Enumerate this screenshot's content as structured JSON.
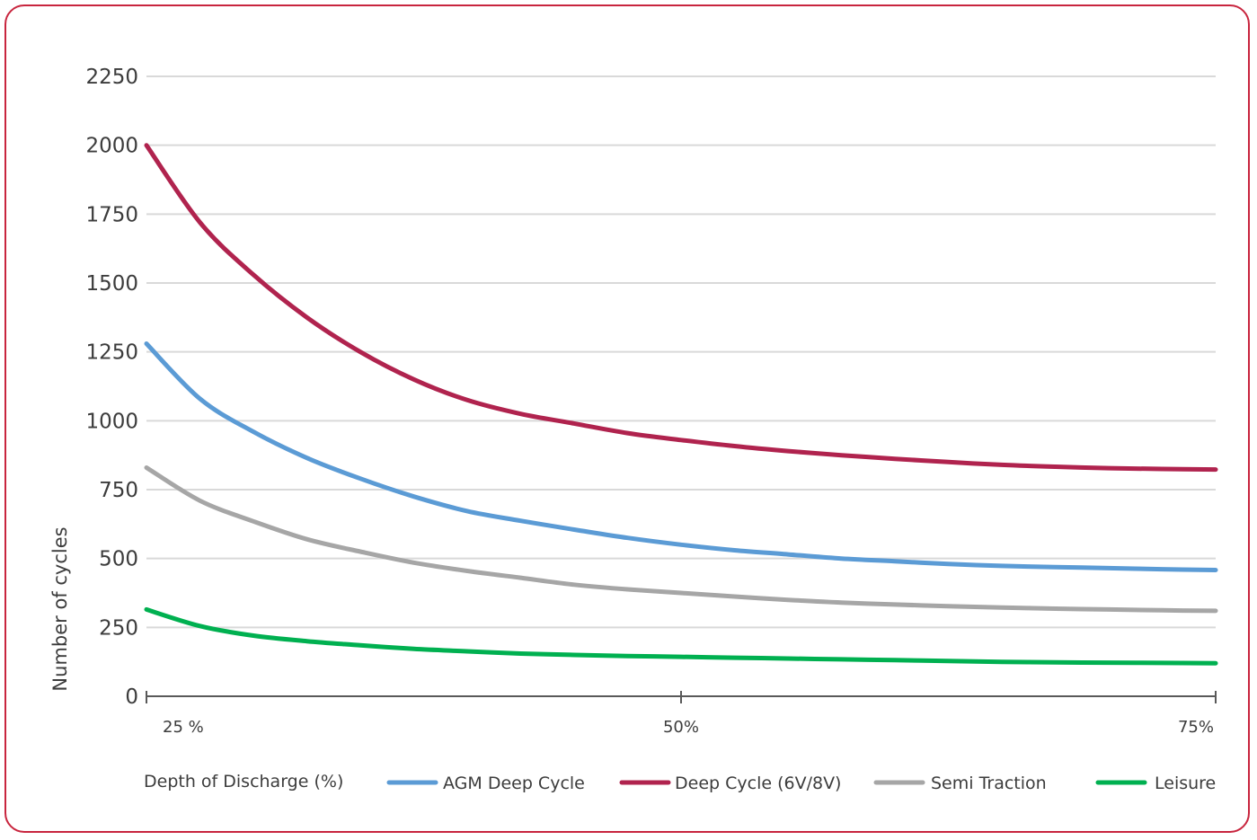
{
  "chart_data": {
    "type": "line",
    "ylabel": "Number of cycles",
    "xlabel": "Depth of Discharge (%)",
    "x": [
      25,
      50,
      75
    ],
    "x_tick_labels": [
      "25 %",
      "50%",
      "75%"
    ],
    "xlim": [
      25,
      75
    ],
    "ylim": [
      0,
      2250
    ],
    "y_ticks": [
      0,
      250,
      500,
      750,
      1000,
      1250,
      1500,
      1750,
      2000,
      2250
    ],
    "grid": true,
    "legend_position": "bottom",
    "series": [
      {
        "name": "AGM Deep Cycle",
        "color": "#5b9bd5",
        "points": [
          [
            25,
            1280
          ],
          [
            27.5,
            1080
          ],
          [
            30,
            960
          ],
          [
            32.5,
            865
          ],
          [
            35,
            790
          ],
          [
            37.5,
            725
          ],
          [
            40,
            672
          ],
          [
            42.5,
            637
          ],
          [
            45,
            605
          ],
          [
            47.5,
            575
          ],
          [
            50,
            550
          ],
          [
            52.5,
            530
          ],
          [
            55,
            515
          ],
          [
            57.5,
            500
          ],
          [
            60,
            490
          ],
          [
            62.5,
            480
          ],
          [
            65,
            473
          ],
          [
            67.5,
            469
          ],
          [
            70,
            465
          ],
          [
            72.5,
            461
          ],
          [
            75,
            458
          ]
        ]
      },
      {
        "name": "Deep Cycle (6V/8V)",
        "color": "#b0234e",
        "points": [
          [
            25,
            2000
          ],
          [
            27.5,
            1720
          ],
          [
            30,
            1530
          ],
          [
            32.5,
            1375
          ],
          [
            35,
            1250
          ],
          [
            37.5,
            1150
          ],
          [
            40,
            1075
          ],
          [
            42.5,
            1025
          ],
          [
            45,
            990
          ],
          [
            47.5,
            955
          ],
          [
            50,
            930
          ],
          [
            52.5,
            908
          ],
          [
            55,
            890
          ],
          [
            57.5,
            875
          ],
          [
            60,
            862
          ],
          [
            62.5,
            850
          ],
          [
            65,
            840
          ],
          [
            67.5,
            833
          ],
          [
            70,
            828
          ],
          [
            72.5,
            825
          ],
          [
            75,
            823
          ]
        ]
      },
      {
        "name": "Semi Traction",
        "color": "#a6a6a6",
        "points": [
          [
            25,
            830
          ],
          [
            27.5,
            710
          ],
          [
            30,
            635
          ],
          [
            32.5,
            570
          ],
          [
            35,
            525
          ],
          [
            37.5,
            485
          ],
          [
            40,
            455
          ],
          [
            42.5,
            430
          ],
          [
            45,
            405
          ],
          [
            47.5,
            388
          ],
          [
            50,
            375
          ],
          [
            52.5,
            362
          ],
          [
            55,
            350
          ],
          [
            57.5,
            340
          ],
          [
            60,
            333
          ],
          [
            62.5,
            327
          ],
          [
            65,
            322
          ],
          [
            67.5,
            318
          ],
          [
            70,
            315
          ],
          [
            72.5,
            312
          ],
          [
            75,
            310
          ]
        ]
      },
      {
        "name": "Leisure",
        "color": "#00b050",
        "points": [
          [
            25,
            315
          ],
          [
            27.5,
            255
          ],
          [
            30,
            220
          ],
          [
            32.5,
            200
          ],
          [
            35,
            185
          ],
          [
            37.5,
            172
          ],
          [
            40,
            163
          ],
          [
            42.5,
            155
          ],
          [
            45,
            150
          ],
          [
            47.5,
            146
          ],
          [
            50,
            143
          ],
          [
            52.5,
            140
          ],
          [
            55,
            137
          ],
          [
            57.5,
            134
          ],
          [
            60,
            131
          ],
          [
            62.5,
            128
          ],
          [
            65,
            125
          ],
          [
            67.5,
            123
          ],
          [
            70,
            122
          ],
          [
            72.5,
            121
          ],
          [
            75,
            120
          ]
        ]
      }
    ]
  },
  "colors": {
    "frame": "#c8253e",
    "grid": "#d9d9d9",
    "axis": "#595959",
    "text": "#3c3c3c"
  }
}
